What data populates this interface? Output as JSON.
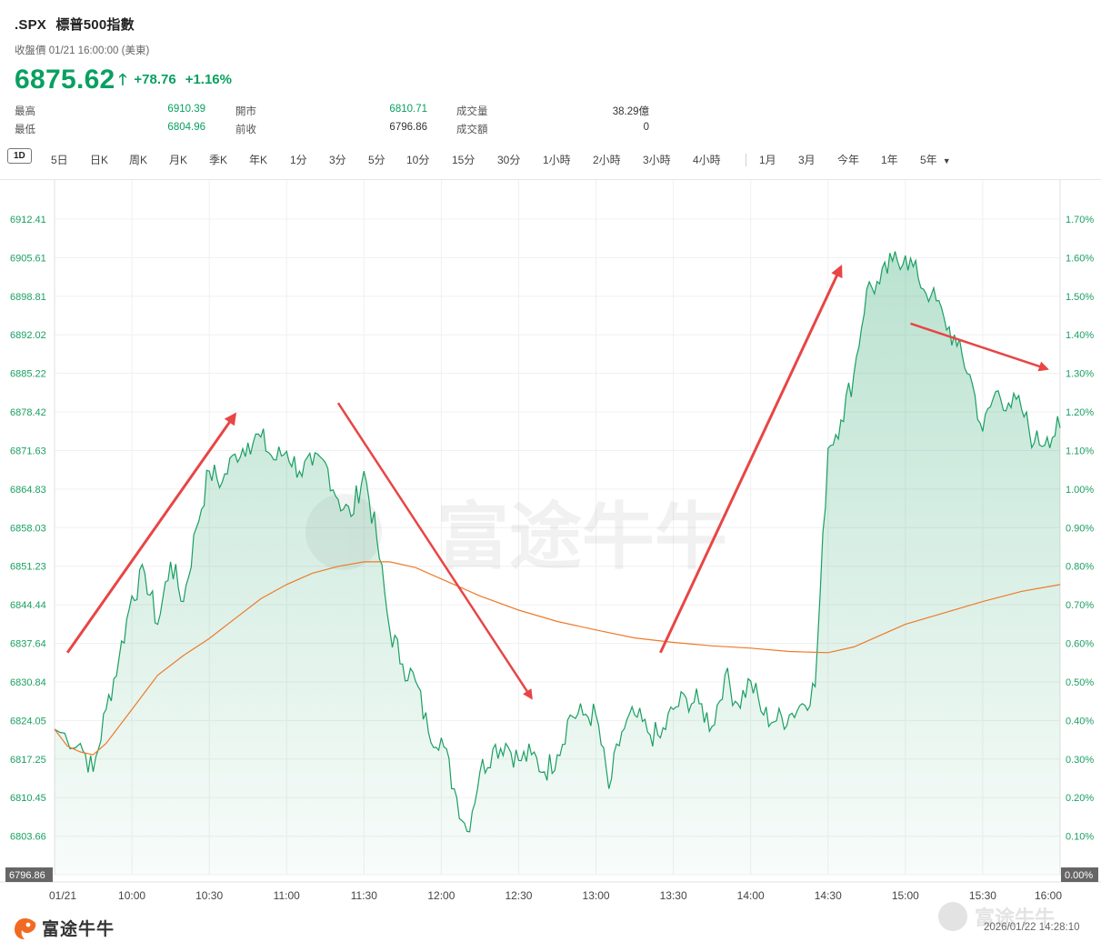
{
  "header": {
    "symbol": ".SPX",
    "name": "標普500指數",
    "subtitle": "收盤價 01/21 16:00:00 (美東)",
    "price": "6875.62",
    "change": "+78.76",
    "change_pct": "+1.16%",
    "up_color": "#08a060"
  },
  "stats": [
    {
      "label": "最高",
      "value": "6910.39"
    },
    {
      "label": "最低",
      "value": "6804.96"
    },
    {
      "label": "開市",
      "value": "6810.71"
    },
    {
      "label": "前收",
      "value": "6796.86"
    },
    {
      "label": "成交量",
      "value": "38.29億"
    },
    {
      "label": "成交額",
      "value": "0"
    }
  ],
  "toolbar": {
    "active": "1D",
    "items": [
      "5日",
      "日K",
      "周K",
      "月K",
      "季K",
      "年K",
      "1分",
      "3分",
      "5分",
      "10分",
      "15分",
      "30分",
      "1小時",
      "2小時",
      "3小時",
      "4小時",
      "1月",
      "3月",
      "今年",
      "1年",
      "5年"
    ]
  },
  "footer": {
    "brand": "富途牛牛",
    "timestamp": "2026/01/22 14:28:10",
    "watermark": "富途牛牛"
  },
  "chart_data": {
    "type": "area",
    "y_left_ticks": [
      "6912.41",
      "6905.61",
      "6898.81",
      "6892.02",
      "6885.22",
      "6878.42",
      "6871.63",
      "6864.83",
      "6858.03",
      "6851.23",
      "6844.44",
      "6837.64",
      "6830.84",
      "6824.05",
      "6817.25",
      "6810.45",
      "6803.66",
      "6796.86"
    ],
    "y_right_ticks": [
      "1.70%",
      "1.60%",
      "1.50%",
      "1.40%",
      "1.30%",
      "1.20%",
      "1.10%",
      "1.00%",
      "0.90%",
      "0.80%",
      "0.70%",
      "0.60%",
      "0.50%",
      "0.40%",
      "0.30%",
      "0.20%",
      "0.10%",
      "0.00%"
    ],
    "x_ticks": [
      "01/21",
      "10:00",
      "10:30",
      "11:00",
      "11:30",
      "12:00",
      "12:30",
      "13:00",
      "13:30",
      "14:00",
      "14:30",
      "15:00",
      "15:30",
      "16:00"
    ],
    "ylim": [
      6796.86,
      6912.41
    ],
    "price_series": {
      "name": "",
      "color": "#1a9f62",
      "x": [
        "09:30",
        "09:40",
        "09:45",
        "09:50",
        "09:55",
        "10:00",
        "10:05",
        "10:10",
        "10:15",
        "10:20",
        "10:25",
        "10:30",
        "10:35",
        "10:40",
        "10:45",
        "10:50",
        "10:55",
        "11:00",
        "11:05",
        "11:10",
        "11:15",
        "11:20",
        "11:25",
        "11:30",
        "11:35",
        "11:40",
        "11:45",
        "11:50",
        "11:55",
        "12:00",
        "12:05",
        "12:10",
        "12:15",
        "12:20",
        "12:25",
        "12:30",
        "12:35",
        "12:40",
        "12:45",
        "12:50",
        "12:55",
        "13:00",
        "13:05",
        "13:10",
        "13:15",
        "13:20",
        "13:25",
        "13:30",
        "13:35",
        "13:40",
        "13:45",
        "13:50",
        "13:55",
        "14:00",
        "14:05",
        "14:10",
        "14:15",
        "14:20",
        "14:25",
        "14:30",
        "14:35",
        "14:40",
        "14:45",
        "14:50",
        "14:55",
        "15:00",
        "15:05",
        "15:10",
        "15:15",
        "15:20",
        "15:25",
        "15:30",
        "15:35",
        "15:40",
        "15:45",
        "15:50",
        "15:55",
        "16:00"
      ],
      "values": [
        6822.5,
        6820.0,
        6815.0,
        6826.0,
        6835.0,
        6846.0,
        6850.0,
        6841.0,
        6852.0,
        6845.0,
        6858.0,
        6868.0,
        6866.0,
        6871.0,
        6873.0,
        6874.0,
        6870.0,
        6871.5,
        6868.0,
        6869.0,
        6869.5,
        6863.0,
        6860.0,
        6868.0,
        6856.0,
        6840.0,
        6834.0,
        6831.0,
        6822.0,
        6821.0,
        6812.0,
        6804.5,
        6815.0,
        6819.0,
        6820.0,
        6817.0,
        6818.0,
        6815.0,
        6818.0,
        6825.0,
        6825.0,
        6825.0,
        6812.0,
        6822.0,
        6825.0,
        6822.0,
        6821.0,
        6826.0,
        6828.0,
        6827.0,
        6823.0,
        6832.0,
        6827.0,
        6831.0,
        6825.0,
        6824.0,
        6825.0,
        6827.0,
        6830.0,
        6872.0,
        6877.0,
        6885.0,
        6900.0,
        6901.0,
        6905.0,
        6906.0,
        6902.0,
        6899.0,
        6895.0,
        6890.0,
        6885.0,
        6875.0,
        6882.0,
        6880.0,
        6879.0,
        6873.0,
        6874.0,
        6875.62
      ]
    },
    "avg_series": {
      "name": "",
      "color": "#ee7a2a",
      "x": [
        "09:30",
        "09:35",
        "09:40",
        "09:45",
        "09:50",
        "10:00",
        "10:10",
        "10:20",
        "10:30",
        "10:40",
        "10:50",
        "11:00",
        "11:10",
        "11:20",
        "11:30",
        "11:40",
        "11:50",
        "12:00",
        "12:15",
        "12:30",
        "12:45",
        "13:00",
        "13:15",
        "13:30",
        "13:45",
        "14:00",
        "14:15",
        "14:30",
        "14:40",
        "14:50",
        "15:00",
        "15:15",
        "15:30",
        "15:45",
        "16:00"
      ],
      "values": [
        6822.5,
        6819.5,
        6818.5,
        6818.0,
        6820.0,
        6826.0,
        6832.0,
        6835.5,
        6838.5,
        6842.0,
        6845.5,
        6848.0,
        6850.0,
        6851.2,
        6852.0,
        6852.0,
        6851.0,
        6849.0,
        6846.0,
        6843.5,
        6841.5,
        6840.0,
        6838.6,
        6837.8,
        6837.2,
        6836.8,
        6836.2,
        6836.0,
        6837.0,
        6839.0,
        6841.0,
        6843.0,
        6845.0,
        6846.8,
        6848.0
      ]
    },
    "grid": true,
    "annotations": [
      {
        "type": "arrow",
        "from": [
          "09:35",
          6836.0
        ],
        "to": [
          "10:40",
          6878.0
        ],
        "color": "#e84545"
      },
      {
        "type": "arrow",
        "from": [
          "11:20",
          6880.0
        ],
        "to": [
          "12:35",
          6828.0
        ],
        "color": "#e84545"
      },
      {
        "type": "arrow",
        "from": [
          "13:25",
          6836.0
        ],
        "to": [
          "14:35",
          6904.0
        ],
        "color": "#e84545"
      },
      {
        "type": "arrow",
        "from": [
          "15:02",
          6894.0
        ],
        "to": [
          "15:55",
          6886.0
        ],
        "color": "#e84545"
      }
    ]
  }
}
